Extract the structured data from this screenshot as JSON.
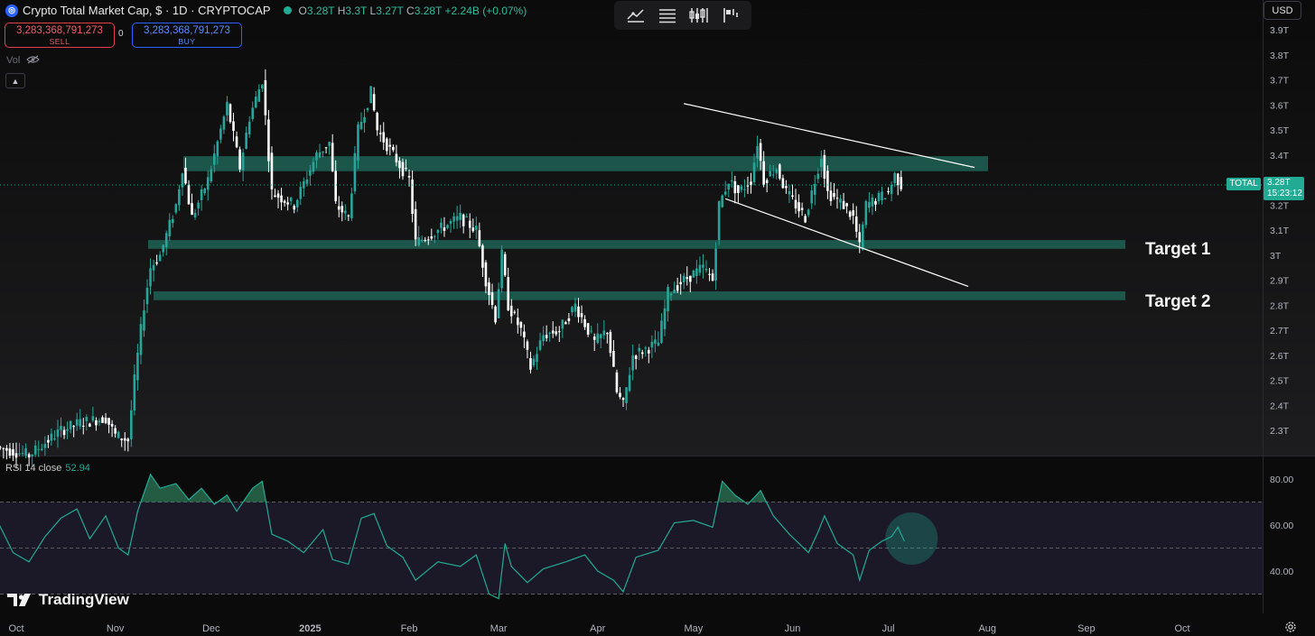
{
  "header": {
    "title": "Crypto Total Market Cap, $ · 1D · CRYPTOCAP",
    "ohlc": [
      {
        "k": "O",
        "v": "3.28T"
      },
      {
        "k": "H",
        "v": "3.3T"
      },
      {
        "k": "L",
        "v": "3.27T"
      },
      {
        "k": "C",
        "v": "3.28T"
      },
      {
        "k": "",
        "v": "+2.24B (+0.07%)"
      }
    ]
  },
  "trade": {
    "sell_price": "3,283,368,791,273",
    "sell_label": "SELL",
    "buy_price": "3,283,368,791,273",
    "buy_label": "BUY",
    "spread": "0"
  },
  "vol_label": "Vol",
  "toolbar": {
    "icons": [
      "object-tree-icon",
      "data-window-icon",
      "indicators-icon",
      "replay-icon"
    ]
  },
  "currency": "USD",
  "price_badge": {
    "label": "TOTAL",
    "price": "3.28T",
    "countdown": "15:23:12"
  },
  "annotations": {
    "target1": "Target 1",
    "target2": "Target 2"
  },
  "rsi": {
    "label": "RSI 14 close",
    "value": "52.94"
  },
  "watermark": "TradingView",
  "colors": {
    "up": "#26a69a",
    "down": "#ffffff",
    "zone": "#1e5a4e",
    "rsi_line": "#22ab94",
    "rsi_band": "#2a2640",
    "accent": "#22ab94"
  },
  "chart_data": [
    {
      "type": "candlestick",
      "title": "Crypto Total Market Cap, $ · 1D · CRYPTOCAP",
      "x_ticks": [
        "Oct",
        "Nov",
        "Dec",
        "2025",
        "Feb",
        "Mar",
        "Apr",
        "May",
        "Jun",
        "Jul",
        "Aug",
        "Sep",
        "Oct"
      ],
      "y_unit": "T USD",
      "y_ticks": [
        "3.9T",
        "3.8T",
        "3.7T",
        "3.6T",
        "3.5T",
        "3.4T",
        "3.3T",
        "3.2T",
        "3.1T",
        "3T",
        "2.9T",
        "2.8T",
        "2.7T",
        "2.6T",
        "2.5T",
        "2.4T",
        "2.3T"
      ],
      "y_range": [
        2.2,
        3.95
      ],
      "last_price": 3.28,
      "zones": [
        {
          "from": 3.335,
          "to": 3.395
        },
        {
          "from": 3.025,
          "to": 3.06
        },
        {
          "from": 2.82,
          "to": 2.855
        }
      ],
      "trendlines": [
        {
          "start": [
            "2025-04-28",
            3.605
          ],
          "end": [
            "2025-07-28",
            3.35
          ]
        },
        {
          "start": [
            "2025-05-11",
            3.225
          ],
          "end": [
            "2025-07-26",
            2.875
          ]
        }
      ],
      "price_path": [
        [
          "2024-09-20",
          2.25
        ],
        [
          "2024-10-05",
          2.2
        ],
        [
          "2024-10-15",
          2.3
        ],
        [
          "2024-10-21",
          2.33
        ],
        [
          "2024-10-29",
          2.35
        ],
        [
          "2024-11-01",
          2.28
        ],
        [
          "2024-11-05",
          2.26
        ],
        [
          "2024-11-07",
          2.5
        ],
        [
          "2024-11-10",
          2.8
        ],
        [
          "2024-11-12",
          2.95
        ],
        [
          "2024-11-15",
          3.0
        ],
        [
          "2024-11-20",
          3.2
        ],
        [
          "2024-11-22",
          3.35
        ],
        [
          "2024-11-25",
          3.15
        ],
        [
          "2024-11-30",
          3.3
        ],
        [
          "2024-12-04",
          3.5
        ],
        [
          "2024-12-06",
          3.6
        ],
        [
          "2024-12-10",
          3.35
        ],
        [
          "2024-12-13",
          3.55
        ],
        [
          "2024-12-17",
          3.7
        ],
        [
          "2024-12-20",
          3.25
        ],
        [
          "2024-12-27",
          3.2
        ],
        [
          "2025-01-03",
          3.4
        ],
        [
          "2025-01-07",
          3.45
        ],
        [
          "2025-01-09",
          3.2
        ],
        [
          "2025-01-13",
          3.15
        ],
        [
          "2025-01-16",
          3.5
        ],
        [
          "2025-01-20",
          3.65
        ],
        [
          "2025-01-22",
          3.5
        ],
        [
          "2025-01-27",
          3.4
        ],
        [
          "2025-02-01",
          3.3
        ],
        [
          "2025-02-03",
          3.05
        ],
        [
          "2025-02-10",
          3.1
        ],
        [
          "2025-02-17",
          3.15
        ],
        [
          "2025-02-22",
          3.1
        ],
        [
          "2025-02-25",
          2.9
        ],
        [
          "2025-02-28",
          2.75
        ],
        [
          "2025-03-02",
          3.0
        ],
        [
          "2025-03-04",
          2.8
        ],
        [
          "2025-03-08",
          2.7
        ],
        [
          "2025-03-11",
          2.55
        ],
        [
          "2025-03-15",
          2.68
        ],
        [
          "2025-03-20",
          2.7
        ],
        [
          "2025-03-25",
          2.8
        ],
        [
          "2025-03-31",
          2.65
        ],
        [
          "2025-04-04",
          2.7
        ],
        [
          "2025-04-07",
          2.45
        ],
        [
          "2025-04-09",
          2.4
        ],
        [
          "2025-04-12",
          2.6
        ],
        [
          "2025-04-20",
          2.65
        ],
        [
          "2025-04-23",
          2.85
        ],
        [
          "2025-04-28",
          2.9
        ],
        [
          "2025-05-04",
          2.95
        ],
        [
          "2025-05-07",
          2.9
        ],
        [
          "2025-05-09",
          3.2
        ],
        [
          "2025-05-12",
          3.3
        ],
        [
          "2025-05-15",
          3.25
        ],
        [
          "2025-05-19",
          3.3
        ],
        [
          "2025-05-21",
          3.45
        ],
        [
          "2025-05-23",
          3.3
        ],
        [
          "2025-05-27",
          3.35
        ],
        [
          "2025-05-30",
          3.25
        ],
        [
          "2025-06-02",
          3.2
        ],
        [
          "2025-06-05",
          3.15
        ],
        [
          "2025-06-08",
          3.3
        ],
        [
          "2025-06-10",
          3.4
        ],
        [
          "2025-06-12",
          3.25
        ],
        [
          "2025-06-17",
          3.2
        ],
        [
          "2025-06-20",
          3.15
        ],
        [
          "2025-06-22",
          3.03
        ],
        [
          "2025-06-24",
          3.2
        ],
        [
          "2025-06-27",
          3.22
        ],
        [
          "2025-07-01",
          3.25
        ],
        [
          "2025-07-03",
          3.32
        ],
        [
          "2025-07-05",
          3.28
        ]
      ]
    },
    {
      "type": "line",
      "title": "RSI 14 close",
      "x_ticks": [
        "Oct",
        "Nov",
        "Dec",
        "2025",
        "Feb",
        "Mar",
        "Apr",
        "May",
        "Jun",
        "Jul",
        "Aug",
        "Sep",
        "Oct"
      ],
      "y_ticks": [
        "80.00",
        "60.00",
        "40.00"
      ],
      "y_range": [
        20,
        88
      ],
      "bands": [
        70,
        50,
        30
      ],
      "last_value": 52.94,
      "series": [
        {
          "values": [
            [
              "2024-09-20",
              50
            ],
            [
              "2024-09-25",
              62
            ],
            [
              "2024-09-30",
              48
            ],
            [
              "2024-10-05",
              44
            ],
            [
              "2024-10-10",
              55
            ],
            [
              "2024-10-15",
              63
            ],
            [
              "2024-10-20",
              67
            ],
            [
              "2024-10-24",
              54
            ],
            [
              "2024-10-29",
              64
            ],
            [
              "2024-11-02",
              50
            ],
            [
              "2024-11-05",
              47
            ],
            [
              "2024-11-08",
              66
            ],
            [
              "2024-11-12",
              82
            ],
            [
              "2024-11-15",
              76
            ],
            [
              "2024-11-20",
              78
            ],
            [
              "2024-11-24",
              71
            ],
            [
              "2024-11-28",
              76
            ],
            [
              "2024-12-02",
              69
            ],
            [
              "2024-12-06",
              73
            ],
            [
              "2024-12-09",
              66
            ],
            [
              "2024-12-14",
              76
            ],
            [
              "2024-12-17",
              79
            ],
            [
              "2024-12-20",
              56
            ],
            [
              "2024-12-25",
              53
            ],
            [
              "2024-12-30",
              48
            ],
            [
              "2025-01-05",
              58
            ],
            [
              "2025-01-08",
              45
            ],
            [
              "2025-01-13",
              43
            ],
            [
              "2025-01-17",
              63
            ],
            [
              "2025-01-21",
              65
            ],
            [
              "2025-01-25",
              51
            ],
            [
              "2025-01-30",
              46
            ],
            [
              "2025-02-03",
              36
            ],
            [
              "2025-02-10",
              44
            ],
            [
              "2025-02-17",
              42
            ],
            [
              "2025-02-22",
              47
            ],
            [
              "2025-02-26",
              30
            ],
            [
              "2025-03-01",
              28
            ],
            [
              "2025-03-03",
              52
            ],
            [
              "2025-03-05",
              42
            ],
            [
              "2025-03-10",
              35
            ],
            [
              "2025-03-15",
              41
            ],
            [
              "2025-03-22",
              44
            ],
            [
              "2025-03-28",
              47
            ],
            [
              "2025-04-01",
              40
            ],
            [
              "2025-04-06",
              36
            ],
            [
              "2025-04-09",
              31
            ],
            [
              "2025-04-13",
              46
            ],
            [
              "2025-04-20",
              49
            ],
            [
              "2025-04-25",
              61
            ],
            [
              "2025-05-01",
              62
            ],
            [
              "2025-05-07",
              59
            ],
            [
              "2025-05-10",
              79
            ],
            [
              "2025-05-14",
              73
            ],
            [
              "2025-05-18",
              69
            ],
            [
              "2025-05-22",
              75
            ],
            [
              "2025-05-26",
              64
            ],
            [
              "2025-05-31",
              56
            ],
            [
              "2025-06-06",
              48
            ],
            [
              "2025-06-09",
              57
            ],
            [
              "2025-06-11",
              64
            ],
            [
              "2025-06-15",
              52
            ],
            [
              "2025-06-20",
              47
            ],
            [
              "2025-06-22",
              36
            ],
            [
              "2025-06-25",
              49
            ],
            [
              "2025-06-29",
              53
            ],
            [
              "2025-07-02",
              55
            ],
            [
              "2025-07-04",
              59
            ],
            [
              "2025-07-06",
              52.94
            ]
          ]
        }
      ]
    }
  ]
}
